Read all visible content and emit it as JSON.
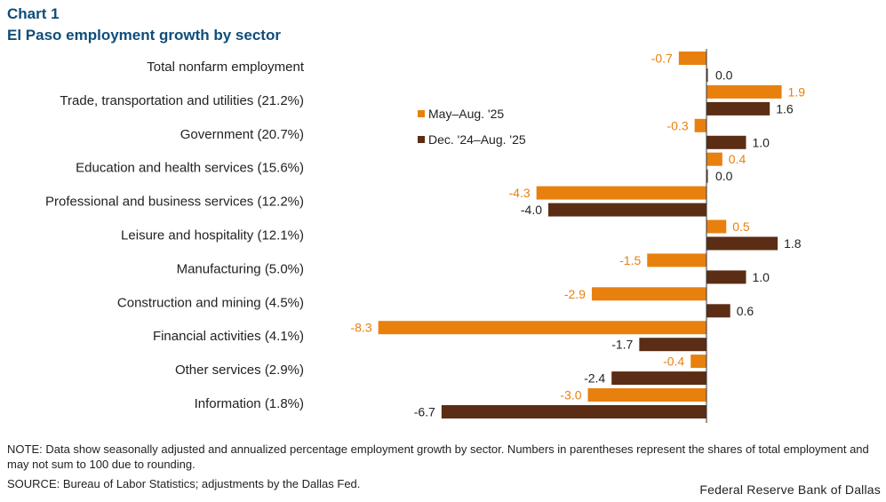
{
  "header": {
    "chart_label": "Chart 1",
    "title": "El Paso employment growth by sector"
  },
  "chart_data": {
    "type": "bar",
    "orientation": "horizontal",
    "title": "El Paso employment growth by sector",
    "xlabel": "",
    "ylabel": "",
    "xlim": [
      -8.3,
      1.9
    ],
    "grid": false,
    "legend_position": "upper-middle",
    "categories": [
      "Total nonfarm employment",
      "Trade, transportation and utilities (21.2%)",
      "Government (20.7%)",
      "Education and health services (15.6%)",
      "Professional and business services (12.2%)",
      "Leisure and hospitality (12.1%)",
      "Manufacturing (5.0%)",
      "Construction and mining (4.5%)",
      "Financial activities (4.1%)",
      "Other services (2.9%)",
      "Information (1.8%)"
    ],
    "series": [
      {
        "name": "May–Aug. '25",
        "color": "#e8800e",
        "label_color": "#e8800e",
        "values": [
          -0.7,
          1.9,
          -0.3,
          0.4,
          -4.3,
          0.5,
          -1.5,
          -2.9,
          -8.3,
          -0.4,
          -3.0
        ],
        "labels": [
          "-0.7",
          "1.9",
          "-0.3",
          "0.4",
          "-4.3",
          "0.5",
          "-1.5",
          "-2.9",
          "-8.3",
          "-0.4",
          "-3.0"
        ]
      },
      {
        "name": "Dec. '24–Aug. '25",
        "color": "#5a2d14",
        "label_color": "#222222",
        "values": [
          0.0,
          1.6,
          1.0,
          0.0,
          -4.0,
          1.8,
          1.0,
          0.6,
          -1.7,
          -2.4,
          -6.7
        ],
        "labels": [
          "0.0",
          "1.6",
          "1.0",
          "0.0",
          "-4.0",
          "1.8",
          "1.0",
          "0.6",
          "-1.7",
          "-2.4",
          "-6.7"
        ]
      }
    ]
  },
  "footer": {
    "note": "NOTE: Data show seasonally adjusted and annualized percentage employment growth by sector. Numbers in parentheses represent the shares of total employment and may not sum to 100 due to rounding.",
    "source": "SOURCE: Bureau of Labor Statistics; adjustments by the Dallas Fed.",
    "credit": "Federal Reserve Bank of Dallas"
  }
}
